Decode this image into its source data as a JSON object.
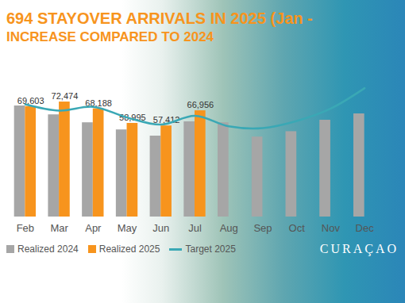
{
  "chart_data": {
    "type": "bar",
    "title": "694 STAYOVER ARRIVALS IN 2025 (Jan -",
    "subtitle": "INCREASE COMPARED TO 2024",
    "brand": "CURAÇAO",
    "categories": [
      "Feb",
      "Mar",
      "Apr",
      "May",
      "Jun",
      "Jul",
      "Aug",
      "Sep",
      "Oct",
      "Nov",
      "Dec"
    ],
    "series": [
      {
        "name": "Realized 2024",
        "type": "bar",
        "color": "#a6a6a6",
        "values": [
          70000,
          64400,
          59400,
          54900,
          51000,
          60000,
          59400,
          50400,
          53800,
          61000,
          65000
        ]
      },
      {
        "name": "Realized 2025",
        "type": "bar",
        "color": "#f7941d",
        "values": [
          69603,
          72474,
          68188,
          58995,
          57412,
          66956,
          null,
          null,
          null,
          null,
          null
        ],
        "value_labels": [
          "69,603",
          "72,474",
          "68,188",
          "58,995",
          "57,412",
          "66,956",
          null,
          null,
          null,
          null,
          null
        ]
      },
      {
        "name": "Target 2025",
        "type": "line",
        "color": "#3aa8b5",
        "values": [
          71000,
          67000,
          69400,
          62700,
          58200,
          63800,
          57100,
          56000,
          60500,
          68300,
          81200
        ]
      }
    ],
    "ylim": [
      0,
      100000
    ],
    "yticks": [],
    "grid": false,
    "legend": "bottom",
    "data_labels": true,
    "tick_labels": "x"
  }
}
